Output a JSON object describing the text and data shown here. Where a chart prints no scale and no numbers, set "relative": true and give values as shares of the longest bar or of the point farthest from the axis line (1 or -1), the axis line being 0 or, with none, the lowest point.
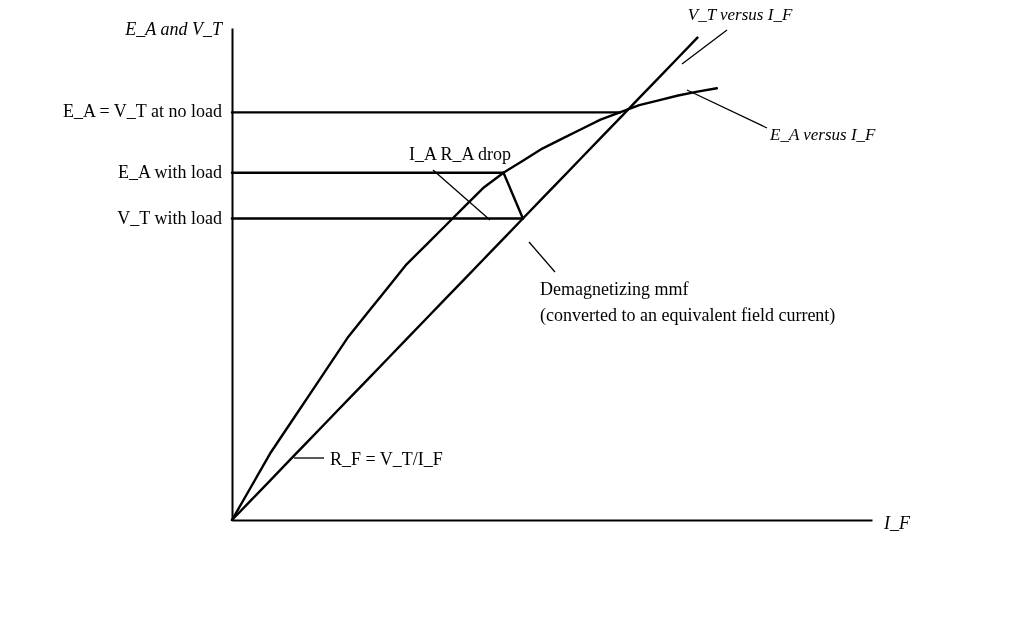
{
  "chart_data": {
    "type": "line",
    "relative": true,
    "ylabel": "E_A and V_T",
    "categories": [
      null,
      null,
      null,
      null,
      null,
      null,
      null,
      null,
      null,
      null,
      null,
      null,
      null,
      null,
      null,
      null,
      null,
      null,
      null,
      null,
      null,
      null,
      null,
      null,
      null,
      null
    ],
    "series": [
      {
        "name": "E_A versus I_F",
        "color": "#000000",
        "values": [
          0,
          0.07,
          0.14,
          0.2,
          0.26,
          0.32,
          0.38,
          0.43,
          0.48,
          0.53,
          0.57,
          0.61,
          0.65,
          0.69,
          0.72,
          0.745,
          0.77,
          0.79,
          0.81,
          0.83,
          0.845,
          0.86,
          0.87,
          0.88,
          0.888,
          0.895
        ]
      },
      {
        "name": "V_T versus I_F",
        "color": "#000000",
        "values": [
          0,
          0.0417,
          0.0833,
          0.125,
          0.1667,
          0.2083,
          0.25,
          0.2917,
          0.3333,
          0.375,
          0.4167,
          0.4583,
          0.5,
          0.5417,
          0.5833,
          0.625,
          0.6667,
          0.7083,
          0.75,
          0.7917,
          0.8333,
          0.875,
          0.9167,
          0.9583,
          1,
          null
        ]
      },
      {
        "color": "#000000",
        "values": [
          0.845,
          0.845,
          0.845,
          0.845,
          0.845,
          0.845,
          0.845,
          0.845,
          0.845,
          0.845,
          0.845,
          0.845,
          0.845,
          0.845,
          0.845,
          0.845,
          0.845,
          0.845,
          0.845,
          0.845,
          0.845,
          null,
          null,
          null,
          null,
          null
        ]
      },
      {
        "color": "#000000",
        "values": [
          0.72,
          0.72,
          0.72,
          0.72,
          0.72,
          0.72,
          0.72,
          0.72,
          0.72,
          0.72,
          0.72,
          0.72,
          0.72,
          0.72,
          0.72,
          null,
          null,
          null,
          null,
          null,
          null,
          null,
          null,
          null,
          null,
          null
        ]
      },
      {
        "color": "#000000",
        "values": [
          0.625,
          0.625,
          0.625,
          0.625,
          0.625,
          0.625,
          0.625,
          0.625,
          0.625,
          0.625,
          0.625,
          0.625,
          0.625,
          0.625,
          0.625,
          0.625,
          null,
          null,
          null,
          null,
          null,
          null,
          null,
          null,
          null,
          null
        ]
      },
      {
        "color": "#000000",
        "values": [
          null,
          null,
          null,
          null,
          null,
          null,
          null,
          null,
          null,
          null,
          null,
          null,
          null,
          null,
          0.72,
          0.625,
          null,
          null,
          null,
          null,
          null,
          null,
          null,
          null,
          null,
          null
        ]
      }
    ],
    "annotations": [
      "E_A = V_T at no load",
      "E_A with load",
      "V_T with load",
      "I_F",
      "I_A R_A drop",
      "Demagnetizing mmf",
      "(converted to an equivalent field current)",
      "R_F = V_T/I_F"
    ]
  }
}
